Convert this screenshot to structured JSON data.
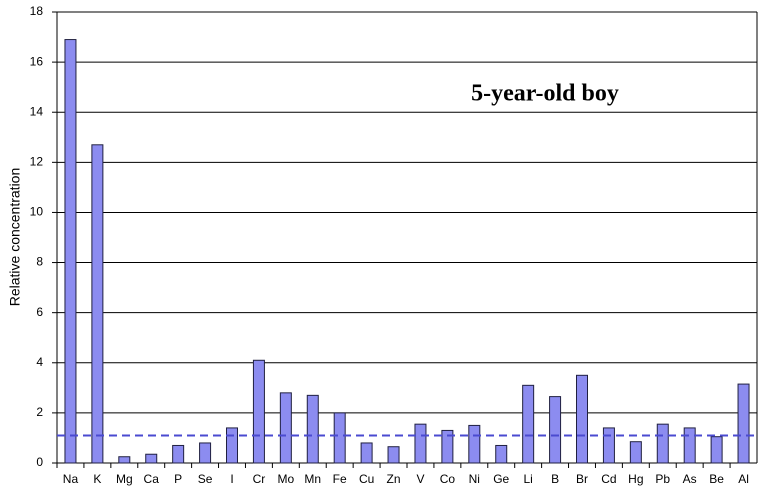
{
  "chart_data": {
    "type": "bar",
    "y_label": "Relative concentration",
    "annotation": "5-year-old boy",
    "categories": [
      "Na",
      "K",
      "Mg",
      "Ca",
      "P",
      "Se",
      "I",
      "Cr",
      "Mo",
      "Mn",
      "Fe",
      "Cu",
      "Zn",
      "V",
      "Co",
      "Ni",
      "Ge",
      "Li",
      "B",
      "Br",
      "Cd",
      "Hg",
      "Pb",
      "As",
      "Be",
      "Al"
    ],
    "values": [
      16.9,
      12.7,
      0.25,
      0.35,
      0.7,
      0.8,
      1.4,
      4.1,
      2.8,
      2.7,
      2.0,
      0.8,
      0.65,
      1.55,
      1.3,
      1.5,
      0.7,
      3.1,
      2.65,
      3.5,
      1.4,
      0.85,
      1.55,
      1.4,
      1.05,
      3.15
    ],
    "color": "#8c8cf0",
    "reference_line": 1.1,
    "reference_color": "#4a4ad0",
    "ylim": [
      0,
      18
    ],
    "yticks": [
      0,
      2,
      4,
      6,
      8,
      10,
      12,
      14,
      16,
      18
    ],
    "grid": true
  }
}
